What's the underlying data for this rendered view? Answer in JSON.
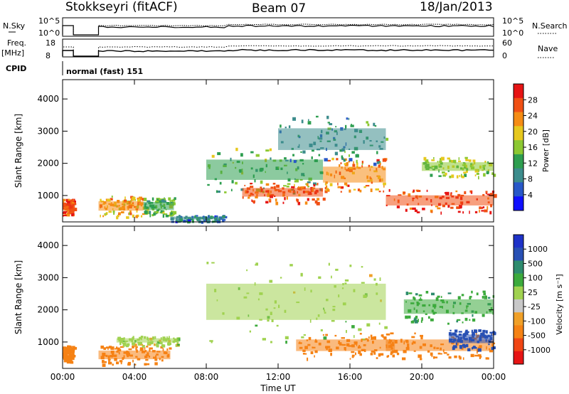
{
  "header": {
    "station": "Stokkseyri (fitACF)",
    "beam": "Beam 07",
    "date": "18/Jan/2013"
  },
  "top_panels": {
    "nsky_label": "N.Sky",
    "nsky_ticks": [
      "10^5",
      "10^0"
    ],
    "nsearch_label": "N.Search",
    "nsearch_ticks": [
      "10^5",
      "10^0"
    ],
    "freq_label_1": "Freq.",
    "freq_label_2": "[MHz]",
    "freq_ticks": [
      "18",
      "8"
    ],
    "nave_label": "Nave",
    "nave_ticks": [
      "60",
      "0"
    ],
    "cpid_label": "CPID",
    "cpid_value": "normal (fast) 151"
  },
  "axes": {
    "ylabel": "Slant Range [km]",
    "xlabel": "Time UT",
    "x_ticks": [
      "00:00",
      "04:00",
      "08:00",
      "12:00",
      "16:00",
      "20:00",
      "00:00"
    ],
    "y_ticks": [
      "1000",
      "2000",
      "3000",
      "4000"
    ]
  },
  "colorbars": {
    "power_label": "Power [dB]",
    "power_ticks": [
      "28",
      "24",
      "20",
      "16",
      "12",
      "8",
      "4"
    ],
    "velocity_label": "Velocity [m s⁻¹]",
    "velocity_ticks": [
      "1000",
      "500",
      "100",
      "25",
      "-25",
      "-100",
      "-500",
      "-1000"
    ]
  },
  "colors": {
    "power_scale": [
      "#1010ff",
      "#2858c8",
      "#3c8c8c",
      "#2e9e50",
      "#8cc832",
      "#e6c81e",
      "#f58c14",
      "#f05014",
      "#e61414"
    ],
    "velocity_scale": [
      "#e61414",
      "#f04614",
      "#f58214",
      "#f0a028",
      "#c8c8c8",
      "#a0d250",
      "#3caa3c",
      "#2e8c6e",
      "#2850b4",
      "#1e32c8"
    ],
    "ground_scatter": "#c8c8c8"
  },
  "chart_data": [
    {
      "type": "heatmap",
      "title": "Power",
      "xlabel": "Time UT",
      "ylabel": "Slant Range [km]",
      "xlim": [
        0,
        24
      ],
      "ylim": [
        180,
        4600
      ],
      "colorbar": {
        "label": "Power [dB]",
        "range": [
          0,
          32
        ],
        "ticks": [
          4,
          8,
          12,
          16,
          20,
          24,
          28
        ]
      },
      "regions": [
        {
          "t": [
            0.0,
            0.6
          ],
          "r": [
            400,
            900
          ],
          "value": 26
        },
        {
          "t": [
            2.0,
            4.5
          ],
          "r": [
            350,
            1000
          ],
          "value": 22
        },
        {
          "t": [
            4.5,
            6.2
          ],
          "r": [
            400,
            950
          ],
          "value": 14
        },
        {
          "t": [
            6.0,
            9.0
          ],
          "r": [
            200,
            400
          ],
          "value": 8
        },
        {
          "t": [
            8.0,
            14.5
          ],
          "r": [
            1100,
            2500
          ],
          "value": 14
        },
        {
          "t": [
            10.0,
            14.5
          ],
          "r": [
            800,
            1400
          ],
          "value": 26
        },
        {
          "t": [
            14.5,
            18.0
          ],
          "r": [
            1100,
            2200
          ],
          "value": 24
        },
        {
          "t": [
            12.0,
            18.0
          ],
          "r": [
            2000,
            3500
          ],
          "value": 10
        },
        {
          "t": [
            18.0,
            24.0
          ],
          "r": [
            500,
            1200
          ],
          "value": 28
        },
        {
          "t": [
            20.0,
            24.0
          ],
          "r": [
            1600,
            2200
          ],
          "value": 16
        }
      ]
    },
    {
      "type": "heatmap",
      "title": "Velocity",
      "xlabel": "Time UT",
      "ylabel": "Slant Range [km]",
      "xlim": [
        0,
        24
      ],
      "ylim": [
        180,
        4600
      ],
      "colorbar": {
        "label": "Velocity [m s⁻¹]",
        "ticks": [
          -1000,
          -500,
          -100,
          -25,
          25,
          100,
          500,
          1000
        ]
      },
      "regions": [
        {
          "t": [
            0.0,
            0.6
          ],
          "r": [
            400,
            900
          ],
          "value": -300
        },
        {
          "t": [
            2.0,
            6.0
          ],
          "r": [
            300,
            900
          ],
          "value": -200
        },
        {
          "t": [
            3.0,
            6.5
          ],
          "r": [
            900,
            1200
          ],
          "value": 0
        },
        {
          "t": [
            8.0,
            18.0
          ],
          "r": [
            1000,
            3500
          ],
          "value": 0
        },
        {
          "t": [
            13.0,
            18.5
          ],
          "r": [
            500,
            1300
          ],
          "value": -300
        },
        {
          "t": [
            18.0,
            24.0
          ],
          "r": [
            500,
            1300
          ],
          "value": -250
        },
        {
          "t": [
            21.5,
            24.0
          ],
          "r": [
            800,
            1400
          ],
          "value": 800
        },
        {
          "t": [
            19.0,
            24.0
          ],
          "r": [
            1600,
            2600
          ],
          "value": 80
        }
      ]
    }
  ]
}
